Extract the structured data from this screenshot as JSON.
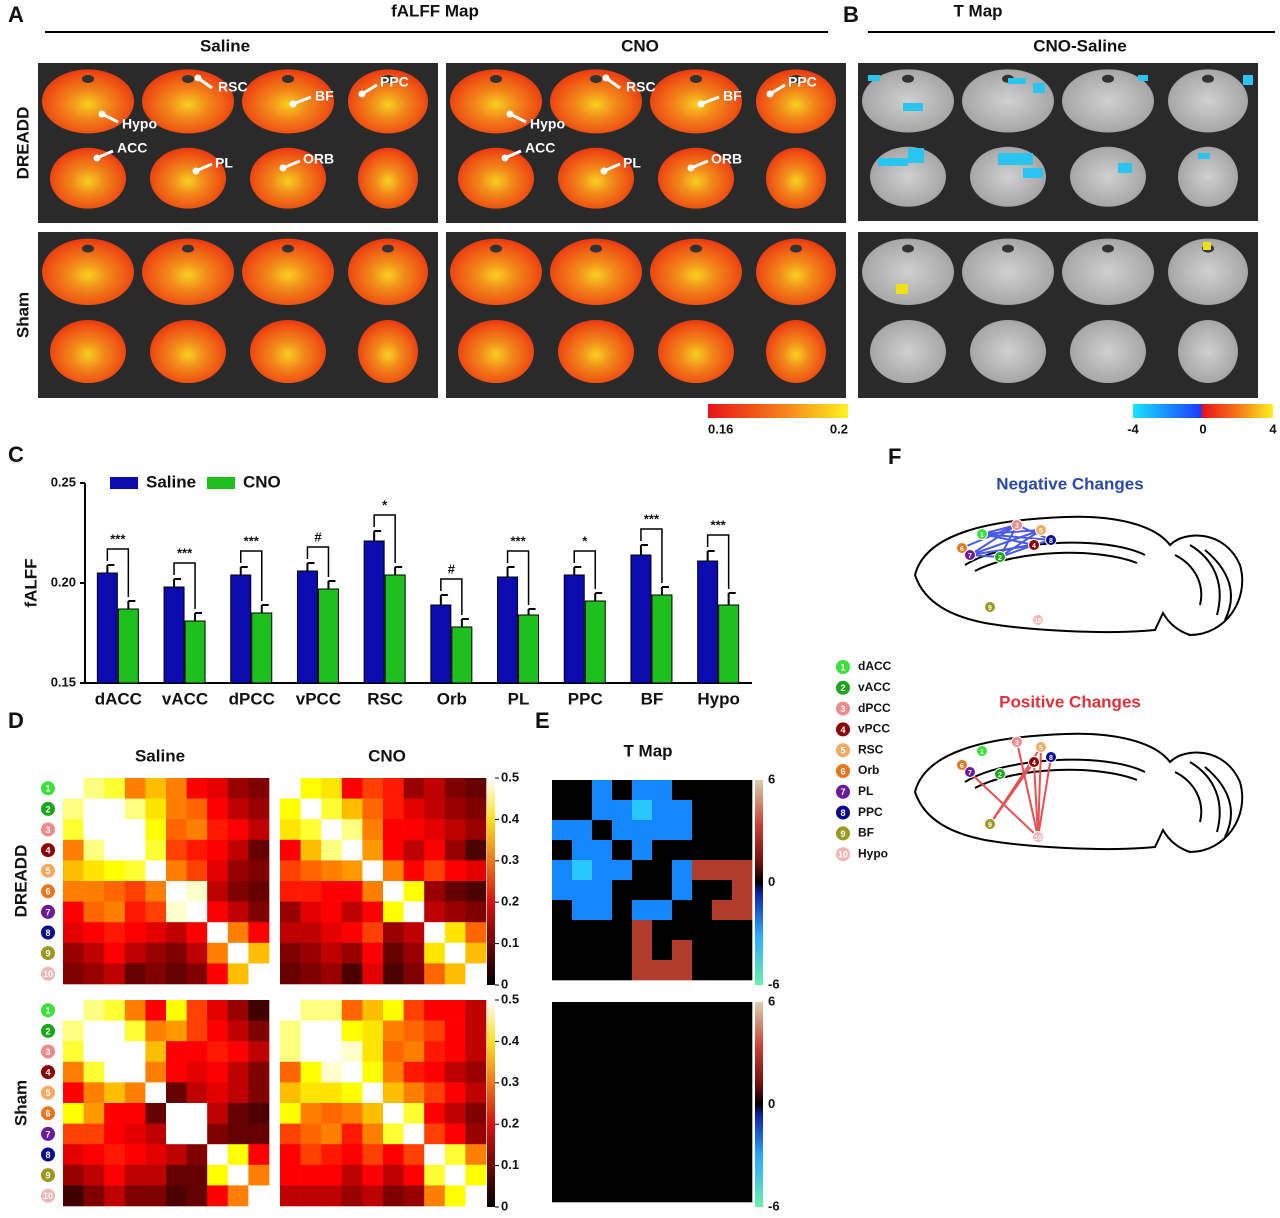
{
  "panel_labels": [
    "A",
    "B",
    "C",
    "D",
    "E",
    "F"
  ],
  "panel_a": {
    "title": "fALFF Map",
    "columns": [
      "Saline",
      "CNO"
    ],
    "rows": [
      "DREADD",
      "Sham"
    ],
    "annotations": [
      "RSC",
      "BF",
      "PPC",
      "Hypo",
      "ACC",
      "PL",
      "ORB"
    ],
    "colorbar_ticks": [
      0.16,
      0.2
    ]
  },
  "panel_b": {
    "title": "T Map",
    "column": "CNO-Saline",
    "colorbar_ticks": [
      -4,
      0,
      4
    ]
  },
  "chart_data": {
    "type": "bar",
    "ylabel": "fALFF",
    "categories": [
      "dACC",
      "vACC",
      "dPCC",
      "vPCC",
      "RSC",
      "Orb",
      "PL",
      "PPC",
      "BF",
      "Hypo"
    ],
    "series": [
      {
        "name": "Saline",
        "color": "#0b0bb0",
        "values": [
          0.205,
          0.198,
          0.204,
          0.206,
          0.221,
          0.189,
          0.203,
          0.204,
          0.214,
          0.211
        ],
        "errors": [
          0.004,
          0.004,
          0.004,
          0.004,
          0.005,
          0.005,
          0.005,
          0.004,
          0.005,
          0.005
        ]
      },
      {
        "name": "CNO",
        "color": "#1ec01e",
        "values": [
          0.187,
          0.181,
          0.185,
          0.197,
          0.204,
          0.178,
          0.184,
          0.191,
          0.194,
          0.189
        ],
        "errors": [
          0.004,
          0.004,
          0.004,
          0.004,
          0.004,
          0.004,
          0.003,
          0.004,
          0.004,
          0.006
        ]
      }
    ],
    "significance": [
      "***",
      "***",
      "***",
      "#",
      "*",
      "#",
      "***",
      "*",
      "***",
      "***"
    ],
    "ylim": [
      0.15,
      0.25
    ],
    "yticks": [
      {
        "value": 0.15,
        "label": "0.15"
      },
      {
        "value": 0.2,
        "label": "0.20"
      },
      {
        "value": 0.25,
        "label": "0.25"
      }
    ]
  },
  "panel_d": {
    "columns": [
      "Saline",
      "CNO"
    ],
    "rows": [
      "DREADD",
      "Sham"
    ],
    "colorbar_ticks": [
      0,
      0.1,
      0.2,
      0.3,
      0.4,
      0.5
    ],
    "matrices": [
      [
        [
          0.5,
          0.45,
          0.42,
          0.3,
          0.35,
          0.3,
          0.2,
          0.18,
          0.12,
          0.1
        ],
        [
          0.45,
          0.5,
          0.5,
          0.45,
          0.38,
          0.3,
          0.28,
          0.2,
          0.15,
          0.12
        ],
        [
          0.42,
          0.5,
          0.5,
          0.5,
          0.4,
          0.28,
          0.3,
          0.22,
          0.2,
          0.15
        ],
        [
          0.3,
          0.45,
          0.5,
          0.5,
          0.42,
          0.25,
          0.22,
          0.2,
          0.15,
          0.08
        ],
        [
          0.35,
          0.38,
          0.4,
          0.42,
          0.5,
          0.3,
          0.25,
          0.18,
          0.12,
          0.1
        ],
        [
          0.3,
          0.3,
          0.28,
          0.25,
          0.3,
          0.5,
          0.48,
          0.15,
          0.1,
          0.08
        ],
        [
          0.2,
          0.28,
          0.3,
          0.22,
          0.25,
          0.48,
          0.5,
          0.2,
          0.15,
          0.1
        ],
        [
          0.18,
          0.2,
          0.22,
          0.2,
          0.18,
          0.15,
          0.2,
          0.5,
          0.3,
          0.2
        ],
        [
          0.12,
          0.15,
          0.2,
          0.15,
          0.12,
          0.1,
          0.15,
          0.3,
          0.5,
          0.35
        ],
        [
          0.1,
          0.12,
          0.15,
          0.08,
          0.1,
          0.08,
          0.1,
          0.2,
          0.35,
          0.5
        ]
      ],
      [
        [
          0.5,
          0.4,
          0.38,
          0.2,
          0.25,
          0.22,
          0.12,
          0.15,
          0.1,
          0.08
        ],
        [
          0.4,
          0.5,
          0.42,
          0.35,
          0.28,
          0.22,
          0.18,
          0.15,
          0.12,
          0.1
        ],
        [
          0.38,
          0.42,
          0.5,
          0.45,
          0.3,
          0.2,
          0.2,
          0.18,
          0.15,
          0.12
        ],
        [
          0.2,
          0.35,
          0.45,
          0.5,
          0.32,
          0.2,
          0.15,
          0.2,
          0.12,
          0.06
        ],
        [
          0.25,
          0.28,
          0.3,
          0.32,
          0.5,
          0.3,
          0.2,
          0.25,
          0.2,
          0.18
        ],
        [
          0.22,
          0.22,
          0.2,
          0.2,
          0.3,
          0.5,
          0.4,
          0.12,
          0.08,
          0.06
        ],
        [
          0.12,
          0.18,
          0.2,
          0.15,
          0.2,
          0.4,
          0.5,
          0.15,
          0.12,
          0.1
        ],
        [
          0.15,
          0.15,
          0.18,
          0.2,
          0.25,
          0.12,
          0.15,
          0.5,
          0.38,
          0.28
        ],
        [
          0.1,
          0.12,
          0.15,
          0.12,
          0.2,
          0.08,
          0.12,
          0.38,
          0.5,
          0.35
        ],
        [
          0.08,
          0.1,
          0.12,
          0.06,
          0.18,
          0.06,
          0.1,
          0.28,
          0.35,
          0.5
        ]
      ],
      [
        [
          0.5,
          0.45,
          0.42,
          0.3,
          0.2,
          0.4,
          0.25,
          0.18,
          0.12,
          0.05
        ],
        [
          0.45,
          0.5,
          0.5,
          0.42,
          0.3,
          0.32,
          0.25,
          0.2,
          0.15,
          0.1
        ],
        [
          0.42,
          0.5,
          0.5,
          0.5,
          0.35,
          0.2,
          0.2,
          0.22,
          0.2,
          0.15
        ],
        [
          0.3,
          0.42,
          0.5,
          0.5,
          0.3,
          0.2,
          0.18,
          0.2,
          0.15,
          0.1
        ],
        [
          0.2,
          0.3,
          0.35,
          0.3,
          0.5,
          0.08,
          0.15,
          0.18,
          0.15,
          0.1
        ],
        [
          0.4,
          0.32,
          0.2,
          0.2,
          0.08,
          0.5,
          0.5,
          0.15,
          0.08,
          0.06
        ],
        [
          0.25,
          0.25,
          0.2,
          0.18,
          0.15,
          0.5,
          0.5,
          0.1,
          0.08,
          0.08
        ],
        [
          0.18,
          0.2,
          0.22,
          0.2,
          0.18,
          0.15,
          0.1,
          0.5,
          0.4,
          0.2
        ],
        [
          0.12,
          0.15,
          0.2,
          0.15,
          0.15,
          0.08,
          0.08,
          0.4,
          0.5,
          0.3
        ],
        [
          0.05,
          0.1,
          0.15,
          0.1,
          0.1,
          0.06,
          0.08,
          0.2,
          0.3,
          0.5
        ]
      ],
      [
        [
          0.5,
          0.45,
          0.45,
          0.28,
          0.35,
          0.4,
          0.25,
          0.2,
          0.2,
          0.15
        ],
        [
          0.45,
          0.5,
          0.5,
          0.4,
          0.38,
          0.3,
          0.28,
          0.25,
          0.2,
          0.15
        ],
        [
          0.45,
          0.5,
          0.5,
          0.48,
          0.38,
          0.28,
          0.3,
          0.22,
          0.2,
          0.15
        ],
        [
          0.28,
          0.4,
          0.48,
          0.5,
          0.4,
          0.3,
          0.22,
          0.2,
          0.15,
          0.12
        ],
        [
          0.35,
          0.38,
          0.38,
          0.4,
          0.5,
          0.35,
          0.3,
          0.25,
          0.2,
          0.15
        ],
        [
          0.4,
          0.3,
          0.28,
          0.3,
          0.35,
          0.5,
          0.42,
          0.2,
          0.15,
          0.1
        ],
        [
          0.25,
          0.28,
          0.3,
          0.22,
          0.3,
          0.42,
          0.5,
          0.25,
          0.2,
          0.12
        ],
        [
          0.2,
          0.25,
          0.22,
          0.2,
          0.25,
          0.2,
          0.25,
          0.5,
          0.42,
          0.3
        ],
        [
          0.2,
          0.2,
          0.2,
          0.15,
          0.2,
          0.15,
          0.2,
          0.42,
          0.5,
          0.4
        ],
        [
          0.15,
          0.15,
          0.15,
          0.12,
          0.15,
          0.1,
          0.12,
          0.3,
          0.4,
          0.5
        ]
      ]
    ]
  },
  "panel_e": {
    "title": "T Map",
    "colorbar_ticks": [
      6,
      0,
      -6
    ],
    "matrices": [
      [
        [
          0,
          0,
          -3,
          0,
          -3,
          -3,
          0,
          0,
          0,
          0
        ],
        [
          0,
          0,
          -3,
          -3,
          -4,
          -3,
          -3,
          0,
          0,
          0
        ],
        [
          -3,
          -3,
          0,
          -3,
          -3,
          -3,
          -3,
          0,
          0,
          0
        ],
        [
          0,
          -3,
          -3,
          0,
          -3,
          0,
          0,
          0,
          0,
          0
        ],
        [
          -3,
          -4,
          -3,
          -3,
          0,
          0,
          -3,
          2,
          2,
          2
        ],
        [
          -3,
          -3,
          -3,
          0,
          0,
          0,
          -3,
          0,
          0,
          2
        ],
        [
          0,
          -3,
          -3,
          0,
          -3,
          -3,
          0,
          0,
          2,
          2
        ],
        [
          0,
          0,
          0,
          0,
          2,
          0,
          0,
          0,
          0,
          0
        ],
        [
          0,
          0,
          0,
          0,
          2,
          0,
          2,
          0,
          0,
          0
        ],
        [
          0,
          0,
          0,
          0,
          2,
          2,
          2,
          0,
          0,
          0
        ]
      ],
      [
        [
          0,
          0,
          0,
          0,
          0,
          0,
          0,
          0,
          0,
          0
        ],
        [
          0,
          0,
          0,
          0,
          0,
          0,
          0,
          0,
          0,
          0
        ],
        [
          0,
          0,
          0,
          0,
          0,
          0,
          0,
          0,
          0,
          0
        ],
        [
          0,
          0,
          0,
          0,
          0,
          0,
          0,
          0,
          0,
          0
        ],
        [
          0,
          0,
          0,
          0,
          0,
          0,
          0,
          0,
          0,
          0
        ],
        [
          0,
          0,
          0,
          0,
          0,
          0,
          0,
          0,
          0,
          0
        ],
        [
          0,
          0,
          0,
          0,
          0,
          0,
          0,
          0,
          0,
          0
        ],
        [
          0,
          0,
          0,
          0,
          0,
          0,
          0,
          0,
          0,
          0
        ],
        [
          0,
          0,
          0,
          0,
          0,
          0,
          0,
          0,
          0,
          0
        ],
        [
          0,
          0,
          0,
          0,
          0,
          0,
          0,
          0,
          0,
          0
        ]
      ]
    ]
  },
  "panel_f": {
    "negative_title": "Negative Changes",
    "positive_title": "Positive Changes",
    "nodes": [
      {
        "number": 1,
        "name": "dACC",
        "color": "#3be03b"
      },
      {
        "number": 2,
        "name": "vACC",
        "color": "#1aa61a"
      },
      {
        "number": 3,
        "name": "dPCC",
        "color": "#f08a8a"
      },
      {
        "number": 4,
        "name": "vPCC",
        "color": "#8b0000"
      },
      {
        "number": 5,
        "name": "RSC",
        "color": "#f5a860"
      },
      {
        "number": 6,
        "name": "Orb",
        "color": "#e8761e"
      },
      {
        "number": 7,
        "name": "PL",
        "color": "#6a1a9a"
      },
      {
        "number": 8,
        "name": "PPC",
        "color": "#0a0a90"
      },
      {
        "number": 9,
        "name": "BF",
        "color": "#9a9a20"
      },
      {
        "number": 10,
        "name": "Hypo",
        "color": "#f4b4b4"
      }
    ],
    "negative_edges": [
      [
        1,
        3
      ],
      [
        1,
        4
      ],
      [
        1,
        5
      ],
      [
        1,
        8
      ],
      [
        2,
        3
      ],
      [
        2,
        4
      ],
      [
        2,
        5
      ],
      [
        3,
        7
      ],
      [
        4,
        7
      ],
      [
        5,
        7
      ],
      [
        3,
        6
      ],
      [
        2,
        7
      ],
      [
        4,
        8
      ],
      [
        3,
        8
      ]
    ],
    "positive_edges": [
      [
        5,
        9
      ],
      [
        5,
        10
      ],
      [
        4,
        9
      ],
      [
        8,
        10
      ],
      [
        3,
        10
      ],
      [
        6,
        10
      ],
      [
        4,
        10
      ]
    ]
  }
}
